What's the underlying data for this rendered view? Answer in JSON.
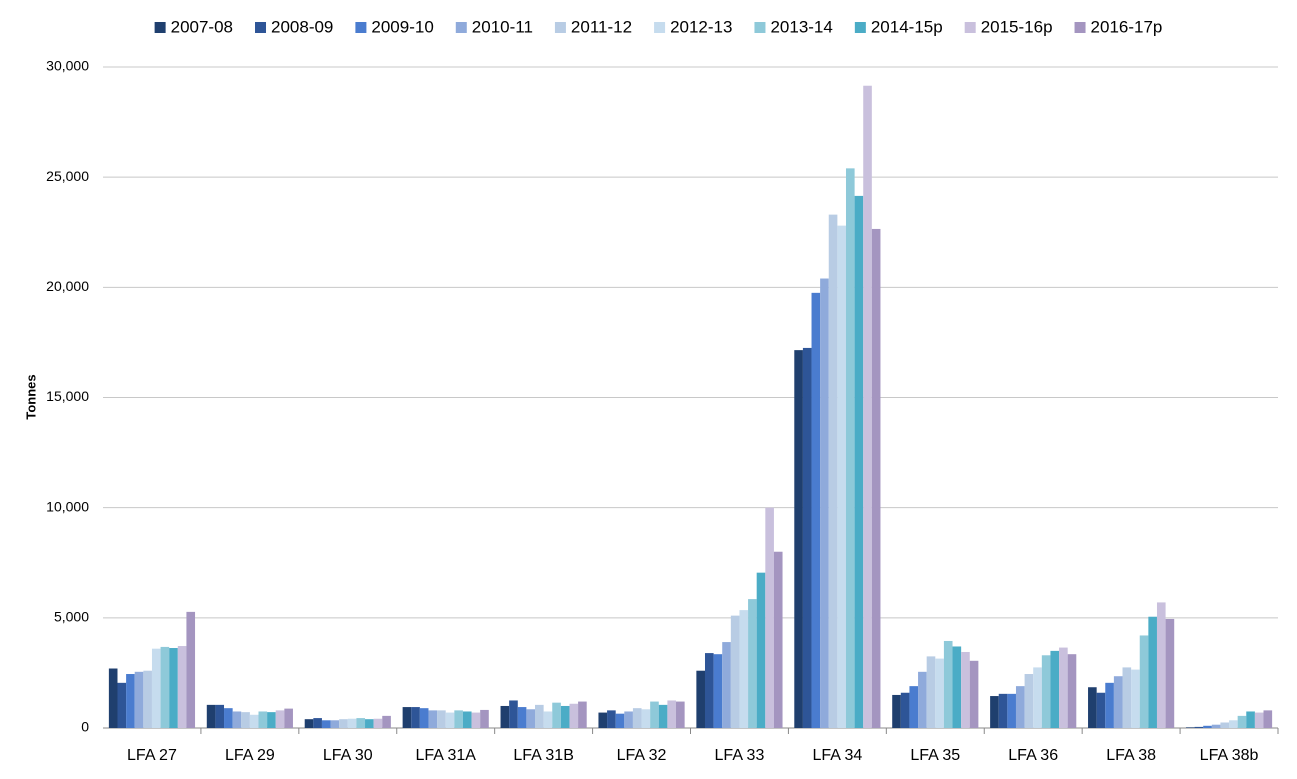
{
  "chart_data": {
    "type": "bar",
    "y_label": "Tonnes",
    "categories": [
      "LFA 27",
      "LFA 29",
      "LFA 30",
      "LFA 31A",
      "LFA 31B",
      "LFA 32",
      "LFA 33",
      "LFA 34",
      "LFA 35",
      "LFA 36",
      "LFA 38",
      "LFA 38b"
    ],
    "series": [
      {
        "name": "2007-08",
        "color": "#1f3f6e",
        "values": [
          2700,
          1050,
          400,
          950,
          1000,
          700,
          2600,
          17150,
          1500,
          1450,
          1850,
          30
        ]
      },
      {
        "name": "2008-09",
        "color": "#2e5597",
        "values": [
          2050,
          1050,
          450,
          950,
          1250,
          800,
          3400,
          17250,
          1600,
          1550,
          1600,
          50
        ]
      },
      {
        "name": "2009-10",
        "color": "#4a7ccf",
        "values": [
          2450,
          900,
          350,
          900,
          950,
          650,
          3350,
          19750,
          1900,
          1550,
          2050,
          100
        ]
      },
      {
        "name": "2010-11",
        "color": "#8faadb",
        "values": [
          2550,
          750,
          350,
          800,
          850,
          750,
          3900,
          20400,
          2550,
          1900,
          2350,
          150
        ]
      },
      {
        "name": "2011-12",
        "color": "#b8cce4",
        "values": [
          2600,
          720,
          400,
          800,
          1050,
          900,
          5100,
          23300,
          3250,
          2450,
          2750,
          250
        ]
      },
      {
        "name": "2012-13",
        "color": "#c6dcee",
        "values": [
          3600,
          600,
          420,
          700,
          750,
          850,
          5350,
          22800,
          3150,
          2750,
          2650,
          350
        ]
      },
      {
        "name": "2013-14",
        "color": "#8ec9d9",
        "values": [
          3680,
          750,
          450,
          800,
          1150,
          1200,
          5850,
          25400,
          3950,
          3300,
          4200,
          550
        ]
      },
      {
        "name": "2014-15p",
        "color": "#4bacc6",
        "values": [
          3630,
          720,
          400,
          750,
          1000,
          1050,
          7050,
          24150,
          3700,
          3500,
          5050,
          750
        ]
      },
      {
        "name": "2015-16p",
        "color": "#c9c0dd",
        "values": [
          3720,
          800,
          420,
          700,
          1100,
          1250,
          10000,
          29150,
          3450,
          3650,
          5700,
          700
        ]
      },
      {
        "name": "2016-17p",
        "color": "#a495c0",
        "values": [
          5270,
          880,
          550,
          820,
          1200,
          1200,
          8000,
          22650,
          3050,
          3350,
          4950,
          800
        ]
      }
    ],
    "ylim": [
      0,
      30000
    ],
    "yticks": [
      0,
      {
        "value": 5000,
        "label": "5,000"
      },
      {
        "value": 10000,
        "label": "10,000"
      },
      {
        "value": 15000,
        "label": "15,000"
      },
      {
        "value": 20000,
        "label": "20,000"
      },
      {
        "value": 25000,
        "label": "25,000"
      },
      {
        "value": 30000,
        "label": "30,000"
      }
    ],
    "grid": true,
    "legend": "top"
  }
}
